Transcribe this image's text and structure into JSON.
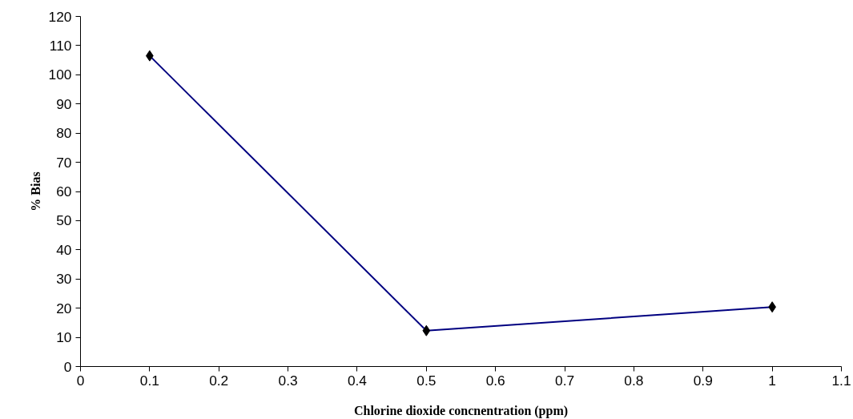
{
  "chart_data": {
    "type": "line",
    "xlabel": "Chlorine dioxide concnentration (ppm)",
    "ylabel": "% Bias",
    "x": [
      0.1,
      0.5,
      1
    ],
    "series": [
      {
        "color": "#000080",
        "values": [
          106.5,
          12.3,
          20.4
        ]
      }
    ],
    "xlim": [
      0,
      1.1
    ],
    "xticks": [
      0,
      0.1,
      0.2,
      0.3,
      0.4,
      0.5,
      0.6,
      0.7,
      0.8,
      0.9,
      1,
      1.1
    ],
    "ylim": [
      0,
      120
    ],
    "yticks": [
      0,
      10,
      20,
      30,
      40,
      50,
      60,
      70,
      80,
      90,
      100,
      110,
      120
    ],
    "marker": "diamond",
    "line_style": "solid",
    "grid": false
  }
}
